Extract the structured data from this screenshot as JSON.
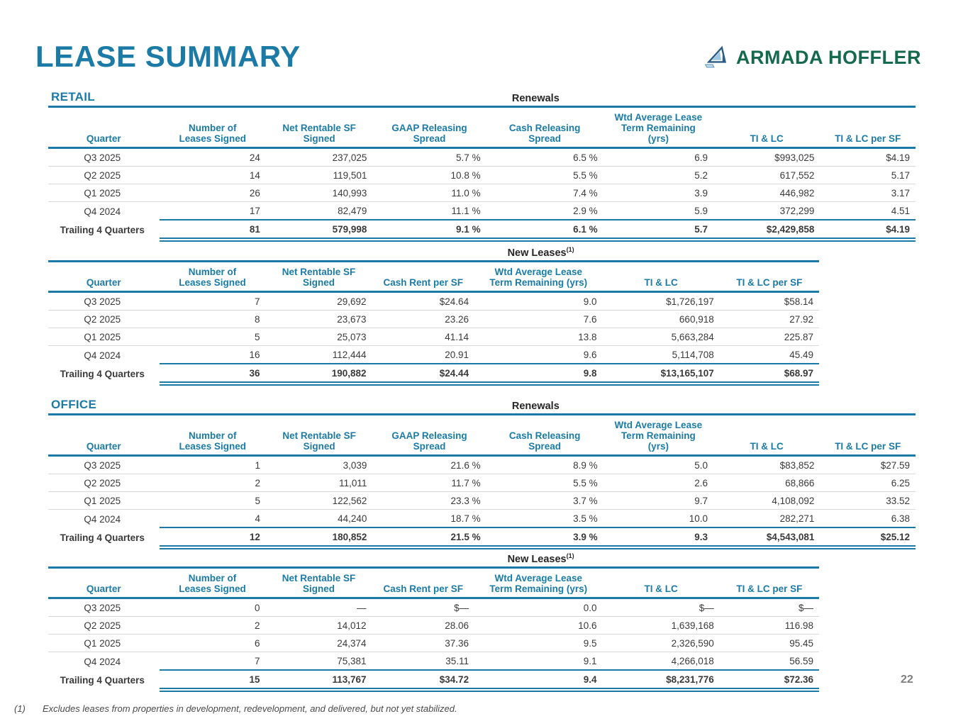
{
  "page": {
    "title": "LEASE SUMMARY",
    "page_number": "22",
    "logo": {
      "text": "ARMADA HOFFLER"
    },
    "footnote": {
      "marker": "(1)",
      "text": "Excludes leases from properties in development, redevelopment, and delivered, but not yet stabilized."
    }
  },
  "colors": {
    "accent_blue": "#1b7ba6",
    "logo_green": "#156a4e",
    "body_text": "#3a3a3a",
    "row_separator": "#d8d8d8",
    "page_number_gray": "#7f7f7f"
  },
  "sections": [
    {
      "label": "RETAIL",
      "tables": [
        {
          "title": "Renewals",
          "title_sup": "",
          "headers": [
            "Quarter",
            "Number of\nLeases Signed",
            "Net Rentable SF\nSigned",
            "GAAP Releasing\nSpread",
            "Cash Releasing\nSpread",
            "Wtd Average Lease\nTerm Remaining\n(yrs)",
            "TI & LC",
            "TI & LC per SF"
          ],
          "rows": [
            [
              "Q3 2025",
              "24",
              "237,025",
              "5.7 %",
              "6.5 %",
              "6.9",
              "$993,025",
              "$4.19"
            ],
            [
              "Q2 2025",
              "14",
              "119,501",
              "10.8 %",
              "5.5 %",
              "5.2",
              "617,552",
              "5.17"
            ],
            [
              "Q1 2025",
              "26",
              "140,993",
              "11.0 %",
              "7.4 %",
              "3.9",
              "446,982",
              "3.17"
            ],
            [
              "Q4 2024",
              "17",
              "82,479",
              "11.1 %",
              "2.9 %",
              "5.9",
              "372,299",
              "4.51"
            ],
            [
              "Trailing 4 Quarters",
              "81",
              "579,998",
              "9.1 %",
              "6.1 %",
              "5.7",
              "$2,429,858",
              "$4.19"
            ]
          ]
        },
        {
          "title": "New Leases",
          "title_sup": "(1)",
          "headers": [
            "Quarter",
            "Number of\nLeases Signed",
            "Net Rentable SF\nSigned",
            "Cash Rent per SF",
            "Wtd Average Lease\nTerm Remaining (yrs)",
            "TI & LC",
            "TI & LC per SF"
          ],
          "rows": [
            [
              "Q3 2025",
              "7",
              "29,692",
              "$24.64",
              "9.0",
              "$1,726,197",
              "$58.14"
            ],
            [
              "Q2 2025",
              "8",
              "23,673",
              "23.26",
              "7.6",
              "660,918",
              "27.92"
            ],
            [
              "Q1 2025",
              "5",
              "25,073",
              "41.14",
              "13.8",
              "5,663,284",
              "225.87"
            ],
            [
              "Q4 2024",
              "16",
              "112,444",
              "20.91",
              "9.6",
              "5,114,708",
              "45.49"
            ],
            [
              "Trailing 4 Quarters",
              "36",
              "190,882",
              "$24.44",
              "9.8",
              "$13,165,107",
              "$68.97"
            ]
          ]
        }
      ]
    },
    {
      "label": "OFFICE",
      "tables": [
        {
          "title": "Renewals",
          "title_sup": "",
          "headers": [
            "Quarter",
            "Number of\nLeases Signed",
            "Net Rentable SF\nSigned",
            "GAAP Releasing\nSpread",
            "Cash Releasing\nSpread",
            "Wtd Average Lease\nTerm Remaining\n(yrs)",
            "TI & LC",
            "TI & LC per SF"
          ],
          "rows": [
            [
              "Q3 2025",
              "1",
              "3,039",
              "21.6 %",
              "8.9 %",
              "5.0",
              "$83,852",
              "$27.59"
            ],
            [
              "Q2 2025",
              "2",
              "11,011",
              "11.7 %",
              "5.5 %",
              "2.6",
              "68,866",
              "6.25"
            ],
            [
              "Q1 2025",
              "5",
              "122,562",
              "23.3 %",
              "3.7 %",
              "9.7",
              "4,108,092",
              "33.52"
            ],
            [
              "Q4 2024",
              "4",
              "44,240",
              "18.7 %",
              "3.5 %",
              "10.0",
              "282,271",
              "6.38"
            ],
            [
              "Trailing 4 Quarters",
              "12",
              "180,852",
              "21.5 %",
              "3.9 %",
              "9.3",
              "$4,543,081",
              "$25.12"
            ]
          ]
        },
        {
          "title": "New Leases",
          "title_sup": "(1)",
          "headers": [
            "Quarter",
            "Number of\nLeases Signed",
            "Net Rentable SF\nSigned",
            "Cash Rent per SF",
            "Wtd Average Lease\nTerm Remaining (yrs)",
            "TI & LC",
            "TI & LC per SF"
          ],
          "rows": [
            [
              "Q3 2025",
              "0",
              "—",
              "$—",
              "0.0",
              "$—",
              "$—"
            ],
            [
              "Q2 2025",
              "2",
              "14,012",
              "28.06",
              "10.6",
              "1,639,168",
              "116.98"
            ],
            [
              "Q1 2025",
              "6",
              "24,374",
              "37.36",
              "9.5",
              "2,326,590",
              "95.45"
            ],
            [
              "Q4 2024",
              "7",
              "75,381",
              "35.11",
              "9.1",
              "4,266,018",
              "56.59"
            ],
            [
              "Trailing 4 Quarters",
              "15",
              "113,767",
              "$34.72",
              "9.4",
              "$8,231,776",
              "$72.36"
            ]
          ]
        }
      ]
    }
  ]
}
